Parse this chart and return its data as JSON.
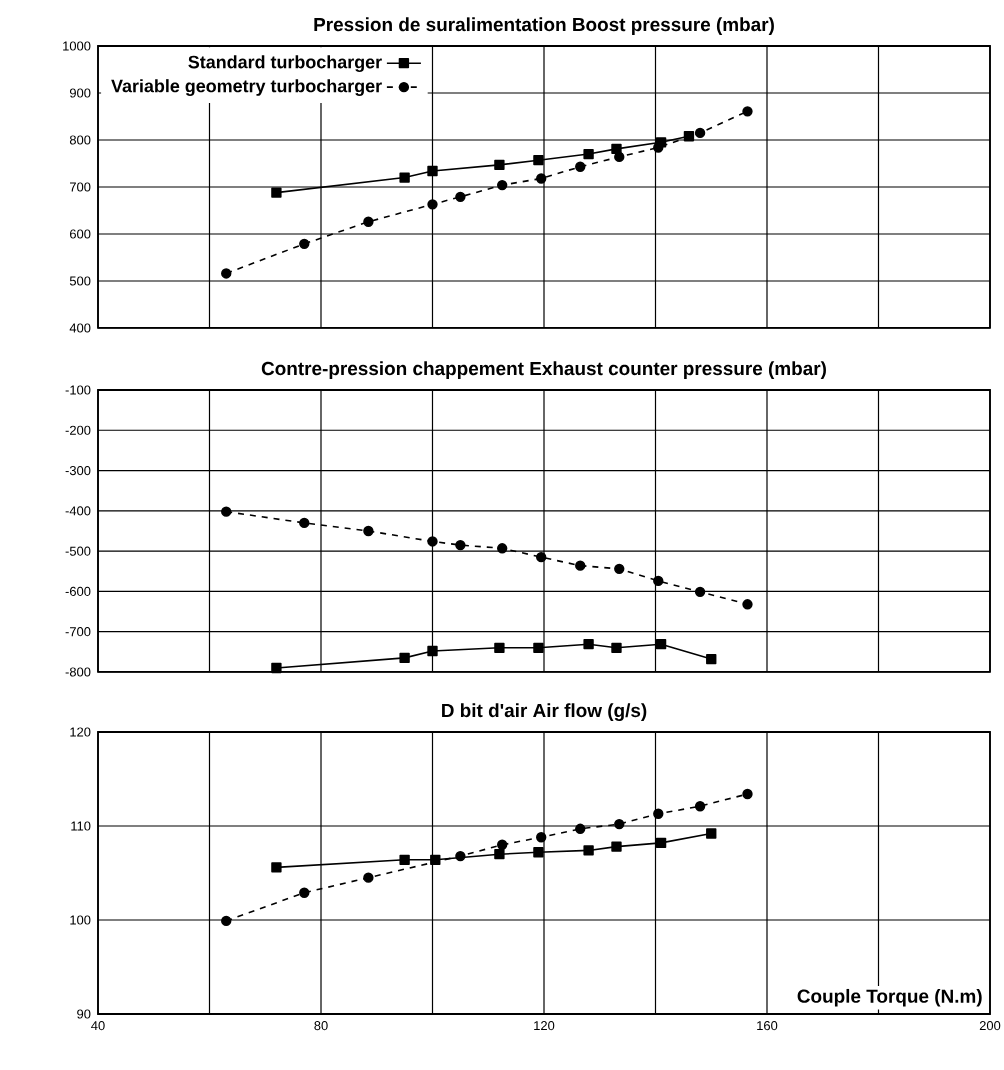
{
  "chart_data": [
    {
      "type": "line",
      "title": "Pression de suralimentation Boost pressure (mbar)",
      "xlim": [
        40,
        200
      ],
      "ylim": [
        400,
        1000
      ],
      "yticks": [
        400,
        500,
        600,
        700,
        800,
        900,
        1000
      ],
      "xticks": [
        40,
        {
          "value": 60,
          "label": null
        },
        80,
        {
          "value": 100,
          "label": null
        },
        120,
        {
          "value": 140,
          "label": null
        },
        160,
        {
          "value": 180,
          "label": null
        },
        200
      ],
      "tick_labels": "y",
      "grid": true,
      "legend": "top left",
      "series": [
        {
          "name": "Standard turbocharger",
          "color": "#000000",
          "marker": "square",
          "line_style": "solid",
          "x": [
            72,
            95,
            100,
            112,
            119,
            128,
            133,
            141,
            146
          ],
          "values": [
            688,
            720,
            734,
            747,
            757,
            770,
            781,
            795,
            808
          ]
        },
        {
          "name": "Variable geometry turbocharger",
          "color": "#000000",
          "marker": "circle",
          "line_style": "dashed",
          "x": [
            63,
            77,
            88.5,
            100,
            105,
            112.5,
            119.5,
            126.5,
            133.5,
            140.5,
            148,
            156.5
          ],
          "values": [
            516,
            579,
            626,
            663,
            679,
            704,
            718,
            743,
            764,
            784,
            815,
            861
          ]
        }
      ]
    },
    {
      "type": "line",
      "title": "Contre-pression chappement Exhaust counter pressure (mbar)",
      "xlim": [
        40,
        200
      ],
      "ylim": [
        -800,
        -100
      ],
      "yticks": [
        -800,
        -700,
        -600,
        -500,
        -400,
        -300,
        -200,
        -100
      ],
      "xticks": [
        40,
        {
          "value": 60,
          "label": null
        },
        80,
        {
          "value": 100,
          "label": null
        },
        120,
        {
          "value": 140,
          "label": null
        },
        160,
        {
          "value": 180,
          "label": null
        },
        200
      ],
      "tick_labels": "y",
      "grid": true,
      "series": [
        {
          "color": "#000000",
          "marker": "square",
          "line_style": "solid",
          "x": [
            72,
            95,
            100,
            112,
            119,
            128,
            133,
            141,
            150
          ],
          "values": [
            -790,
            -765,
            -748,
            -740,
            -740,
            -731,
            -740,
            -731,
            -768
          ]
        },
        {
          "color": "#000000",
          "marker": "circle",
          "line_style": "dashed",
          "x": [
            63,
            77,
            88.5,
            100,
            105,
            112.5,
            119.5,
            126.5,
            133.5,
            140.5,
            148,
            156.5
          ],
          "values": [
            -402,
            -430,
            -450,
            -476,
            -485,
            -493,
            -515,
            -536,
            -544,
            -574,
            -601,
            -632
          ]
        }
      ]
    },
    {
      "type": "line",
      "title": "D bit d'air Air flow (g/s)",
      "xlabel": "Couple Torque (N.m)",
      "xlim": [
        40,
        200
      ],
      "ylim": [
        90,
        120
      ],
      "yticks": [
        90,
        100,
        110,
        120
      ],
      "xticks": [
        40,
        {
          "value": 60,
          "label": null
        },
        80,
        {
          "value": 100,
          "label": null
        },
        120,
        {
          "value": 140,
          "label": null
        },
        160,
        {
          "value": 180,
          "label": null
        },
        200
      ],
      "grid": true,
      "series": [
        {
          "color": "#000000",
          "marker": "square",
          "line_style": "solid",
          "x": [
            72,
            95,
            100.5,
            112,
            119,
            128,
            133,
            141,
            150
          ],
          "values": [
            105.6,
            106.4,
            106.4,
            107.0,
            107.2,
            107.4,
            107.8,
            108.2,
            109.2
          ]
        },
        {
          "color": "#000000",
          "marker": "circle",
          "line_style": "dashed",
          "x": [
            63,
            77,
            88.5,
            100.5,
            105,
            112.5,
            119.5,
            126.5,
            133.5,
            140.5,
            148,
            156.5
          ],
          "values": [
            99.9,
            102.9,
            104.5,
            null,
            106.8,
            108.0,
            108.8,
            109.7,
            110.2,
            111.3,
            112.1,
            113.4
          ]
        }
      ]
    }
  ]
}
